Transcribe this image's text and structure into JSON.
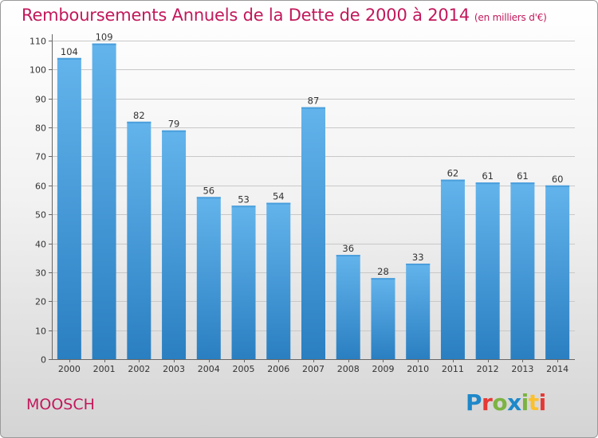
{
  "header": {
    "title": "Remboursements Annuels de la Dette de 2000 à 2014",
    "unit": "(en milliers d'€)"
  },
  "footer": {
    "commune": "MOOSCH",
    "logo_text": "Proxiti",
    "logo_colors": [
      "#1e88c9",
      "#e53935",
      "#7cb342",
      "#1e88c9",
      "#7cb342",
      "#fbc02d",
      "#e53935"
    ]
  },
  "colors": {
    "title": "#c2185b",
    "bar_light": "#63b4ec",
    "bar_dark": "#2a7fc1",
    "grid": "#c8c8c8"
  },
  "chart_data": {
    "type": "bar",
    "title": "Remboursements Annuels de la Dette de 2000 à 2014",
    "subtitle": "(en milliers d'€)",
    "xlabel": "",
    "ylabel": "",
    "categories": [
      "2000",
      "2001",
      "2002",
      "2003",
      "2004",
      "2005",
      "2006",
      "2007",
      "2008",
      "2009",
      "2010",
      "2011",
      "2012",
      "2013",
      "2014"
    ],
    "values": [
      104,
      109,
      82,
      79,
      56,
      53,
      54,
      87,
      36,
      28,
      33,
      62,
      61,
      61,
      60
    ],
    "ylim": [
      0,
      110
    ],
    "yticks": [
      0,
      10,
      20,
      30,
      40,
      50,
      60,
      70,
      80,
      90,
      100,
      110
    ],
    "grid": true,
    "data_labels": true
  }
}
